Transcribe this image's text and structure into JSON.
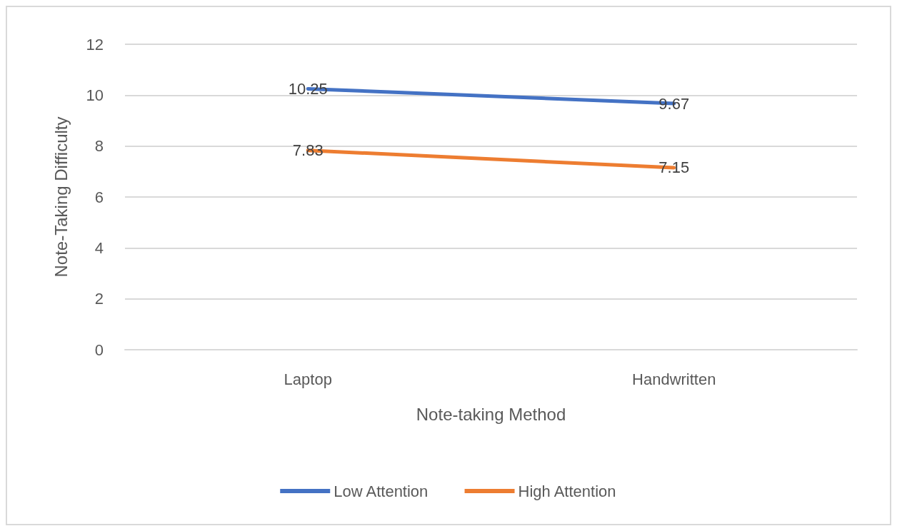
{
  "chart_data": {
    "type": "line",
    "xlabel": "Note-taking Method",
    "ylabel": "Note-Taking Difficulty",
    "categories": [
      "Laptop",
      "Handwritten"
    ],
    "series": [
      {
        "name": "Low Attention",
        "color": "#4472c4",
        "values": [
          10.25,
          9.67
        ]
      },
      {
        "name": "High Attention",
        "color": "#ed7d31",
        "values": [
          7.83,
          7.15
        ]
      }
    ],
    "ylim": [
      0,
      12
    ],
    "yticks": [
      0,
      2,
      4,
      6,
      8,
      10,
      12
    ],
    "grid": "y",
    "legend": "bottom",
    "data_labels": true,
    "marker": "none",
    "line_style": "solid"
  }
}
